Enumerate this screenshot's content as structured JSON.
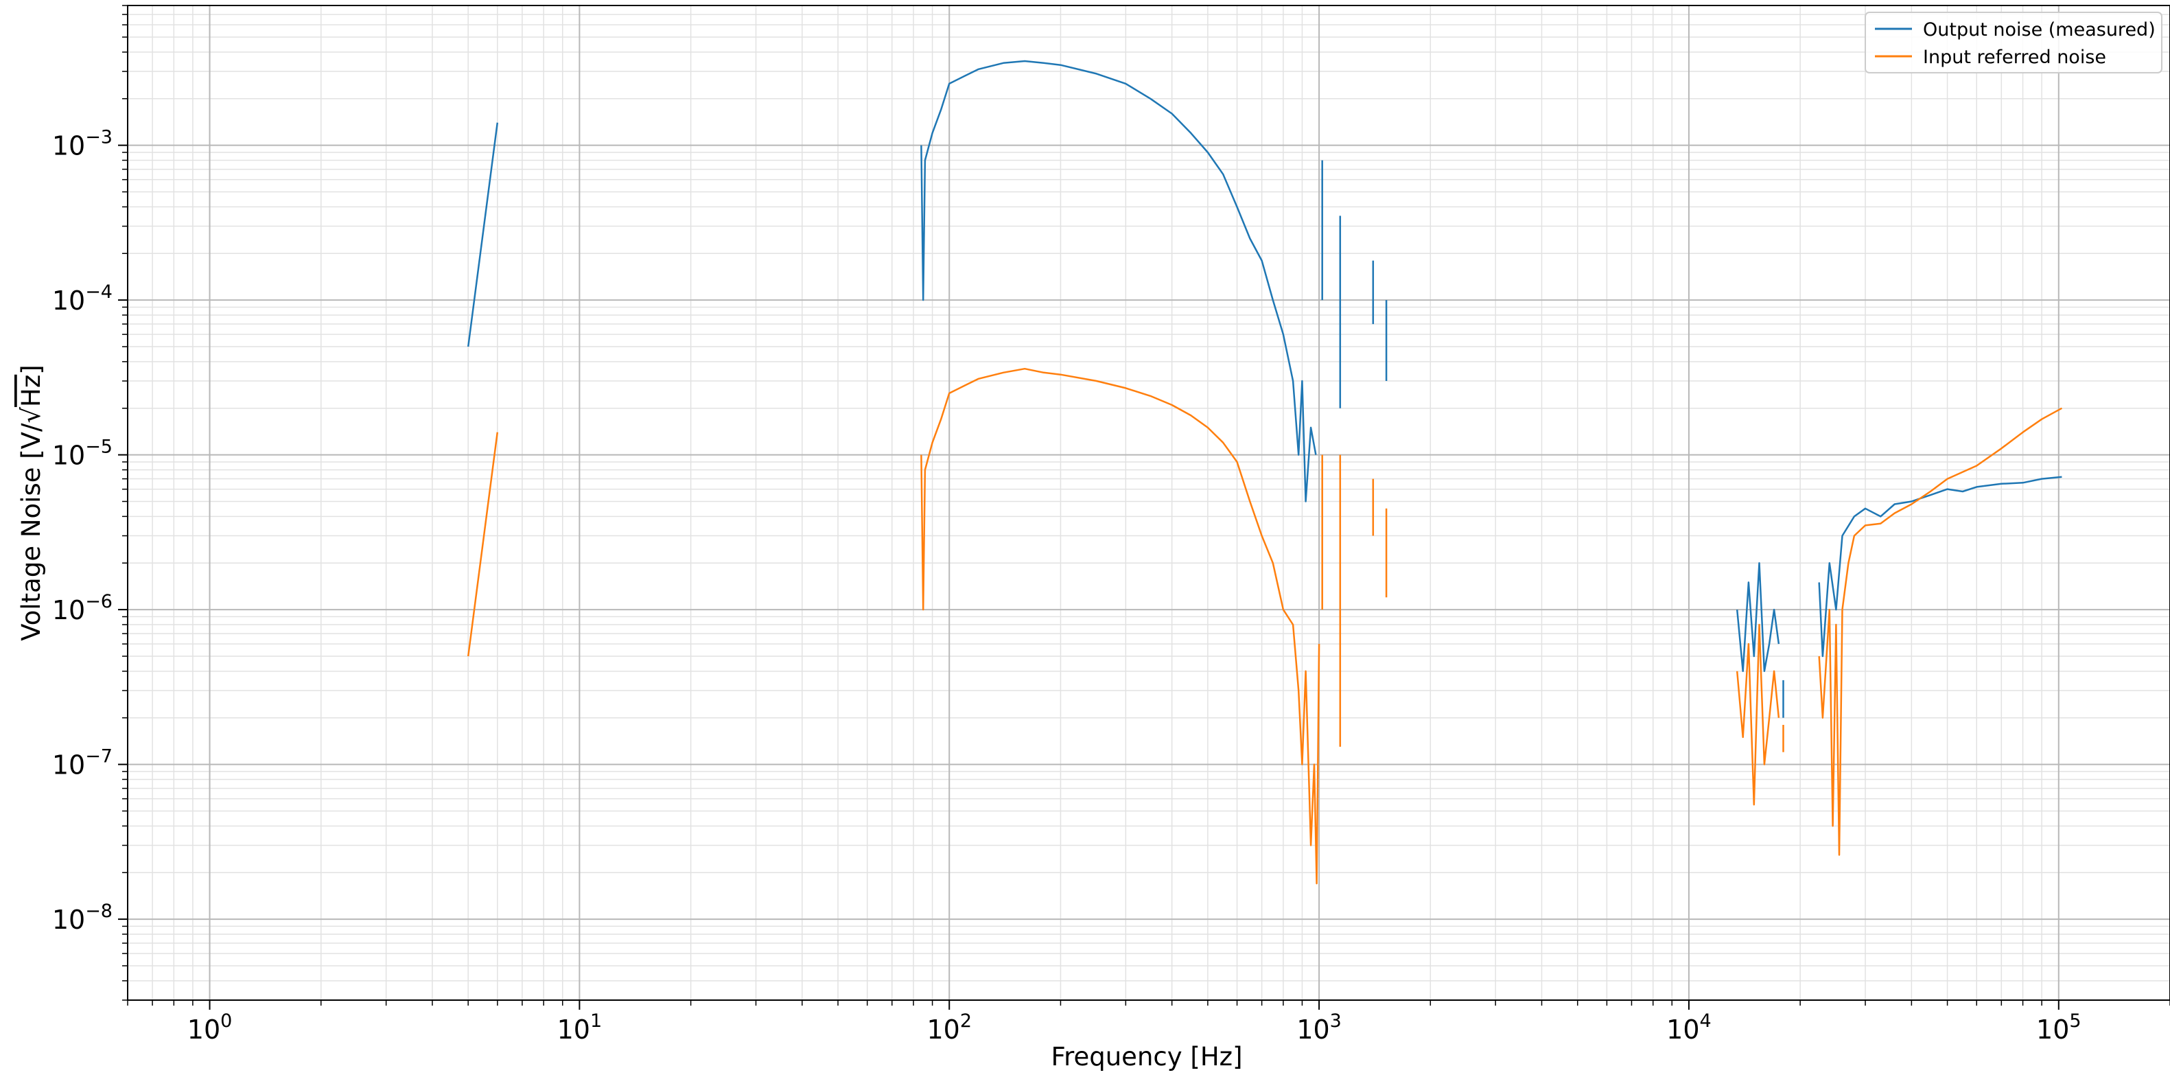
{
  "chart_data": {
    "type": "line",
    "title": "",
    "xlabel": "Frequency [Hz]",
    "ylabel": "Voltage Noise [V/√Hz]",
    "ylabel_parts": {
      "prefix": "Voltage Noise [V/√",
      "over": "Hz",
      "suffix": "]"
    },
    "x_scale": "log",
    "y_scale": "log",
    "xlim": [
      0.6,
      200000
    ],
    "ylim": [
      3e-09,
      0.008
    ],
    "x_ticks": [
      {
        "value": 1,
        "base": "10",
        "exp": "0"
      },
      {
        "value": 10,
        "base": "10",
        "exp": "1"
      },
      {
        "value": 100,
        "base": "10",
        "exp": "2"
      },
      {
        "value": 1000,
        "base": "10",
        "exp": "3"
      },
      {
        "value": 10000,
        "base": "10",
        "exp": "4"
      },
      {
        "value": 100000,
        "base": "10",
        "exp": "5"
      }
    ],
    "y_ticks": [
      {
        "value": 1e-08,
        "base": "10",
        "exp": "−8"
      },
      {
        "value": 1e-07,
        "base": "10",
        "exp": "−7"
      },
      {
        "value": 1e-06,
        "base": "10",
        "exp": "−6"
      },
      {
        "value": 1e-05,
        "base": "10",
        "exp": "−5"
      },
      {
        "value": 0.0001,
        "base": "10",
        "exp": "−4"
      },
      {
        "value": 0.001,
        "base": "10",
        "exp": "−3"
      }
    ],
    "grid": true,
    "legend_position": "top-right",
    "series": [
      {
        "name": "Output noise (measured)",
        "color": "#1f77b4",
        "segments": [
          [
            [
              5,
              5e-05
            ],
            [
              6,
              0.0014
            ]
          ],
          [
            [
              84,
              0.001
            ],
            [
              85,
              0.0001
            ],
            [
              86,
              0.0008
            ],
            [
              90,
              0.0012
            ],
            [
              95,
              0.0017
            ],
            [
              100,
              0.0025
            ],
            [
              110,
              0.0028
            ],
            [
              120,
              0.0031
            ],
            [
              140,
              0.0034
            ],
            [
              160,
              0.0035
            ],
            [
              180,
              0.0034
            ],
            [
              200,
              0.0033
            ],
            [
              250,
              0.0029
            ],
            [
              300,
              0.0025
            ],
            [
              350,
              0.002
            ],
            [
              400,
              0.0016
            ],
            [
              450,
              0.0012
            ],
            [
              500,
              0.0009
            ],
            [
              550,
              0.00065
            ],
            [
              600,
              0.0004
            ],
            [
              650,
              0.00025
            ],
            [
              700,
              0.00018
            ],
            [
              750,
              0.0001
            ],
            [
              800,
              6e-05
            ],
            [
              850,
              3e-05
            ],
            [
              880,
              1e-05
            ],
            [
              900,
              3e-05
            ],
            [
              920,
              5e-06
            ],
            [
              950,
              1.5e-05
            ],
            [
              980,
              1e-05
            ]
          ],
          [
            [
              1020,
              0.0008
            ],
            [
              1020,
              0.0001
            ]
          ],
          [
            [
              1140,
              0.00035
            ],
            [
              1140,
              2e-05
            ]
          ],
          [
            [
              1400,
              0.00018
            ],
            [
              1400,
              7e-05
            ]
          ],
          [
            [
              1520,
              0.0001
            ],
            [
              1520,
              3e-05
            ]
          ],
          [
            [
              13500,
              1e-06
            ],
            [
              14000,
              4e-07
            ],
            [
              14500,
              1.5e-06
            ],
            [
              15000,
              5e-07
            ],
            [
              15500,
              2e-06
            ],
            [
              16000,
              4e-07
            ],
            [
              16500,
              6e-07
            ],
            [
              17000,
              1e-06
            ],
            [
              17500,
              6e-07
            ]
          ],
          [
            [
              18000,
              3.5e-07
            ],
            [
              18000,
              2e-07
            ]
          ],
          [
            [
              22500,
              1.5e-06
            ],
            [
              23000,
              5e-07
            ],
            [
              24000,
              2e-06
            ],
            [
              25000,
              1e-06
            ],
            [
              26000,
              3e-06
            ],
            [
              28000,
              4e-06
            ],
            [
              30000,
              4.5e-06
            ],
            [
              33000,
              4e-06
            ],
            [
              36000,
              4.8e-06
            ],
            [
              40000,
              5e-06
            ],
            [
              45000,
              5.5e-06
            ],
            [
              50000,
              6e-06
            ],
            [
              55000,
              5.8e-06
            ],
            [
              60000,
              6.2e-06
            ],
            [
              70000,
              6.5e-06
            ],
            [
              80000,
              6.6e-06
            ],
            [
              90000,
              7e-06
            ],
            [
              102000,
              7.2e-06
            ]
          ]
        ]
      },
      {
        "name": "Input referred noise",
        "color": "#ff7f0e",
        "segments": [
          [
            [
              5,
              5e-07
            ],
            [
              6,
              1.4e-05
            ]
          ],
          [
            [
              84,
              1e-05
            ],
            [
              85,
              1e-06
            ],
            [
              86,
              8e-06
            ],
            [
              90,
              1.2e-05
            ],
            [
              95,
              1.7e-05
            ],
            [
              100,
              2.5e-05
            ],
            [
              110,
              2.8e-05
            ],
            [
              120,
              3.1e-05
            ],
            [
              140,
              3.4e-05
            ],
            [
              160,
              3.6e-05
            ],
            [
              180,
              3.4e-05
            ],
            [
              200,
              3.3e-05
            ],
            [
              250,
              3e-05
            ],
            [
              300,
              2.7e-05
            ],
            [
              350,
              2.4e-05
            ],
            [
              400,
              2.1e-05
            ],
            [
              450,
              1.8e-05
            ],
            [
              500,
              1.5e-05
            ],
            [
              550,
              1.2e-05
            ],
            [
              600,
              9e-06
            ],
            [
              650,
              5e-06
            ],
            [
              700,
              3e-06
            ],
            [
              750,
              2e-06
            ],
            [
              800,
              1e-06
            ],
            [
              850,
              8e-07
            ],
            [
              880,
              3e-07
            ],
            [
              900,
              1e-07
            ],
            [
              920,
              4e-07
            ],
            [
              950,
              3e-08
            ],
            [
              970,
              1e-07
            ],
            [
              985,
              1.7e-08
            ],
            [
              1000,
              6e-07
            ]
          ],
          [
            [
              1020,
              1e-05
            ],
            [
              1020,
              1e-06
            ]
          ],
          [
            [
              1140,
              1e-05
            ],
            [
              1140,
              1.3e-07
            ]
          ],
          [
            [
              1400,
              7e-06
            ],
            [
              1400,
              3e-06
            ]
          ],
          [
            [
              1520,
              4.5e-06
            ],
            [
              1520,
              1.2e-06
            ]
          ],
          [
            [
              13500,
              4e-07
            ],
            [
              14000,
              1.5e-07
            ],
            [
              14500,
              6e-07
            ],
            [
              15000,
              5.5e-08
            ],
            [
              15500,
              8e-07
            ],
            [
              16000,
              1e-07
            ],
            [
              16500,
              2e-07
            ],
            [
              17000,
              4e-07
            ],
            [
              17500,
              2e-07
            ]
          ],
          [
            [
              18000,
              1.8e-07
            ],
            [
              18000,
              1.2e-07
            ]
          ],
          [
            [
              22500,
              5e-07
            ],
            [
              23000,
              2e-07
            ],
            [
              24000,
              1e-06
            ],
            [
              24500,
              4e-08
            ],
            [
              25000,
              8e-07
            ],
            [
              25500,
              2.6e-08
            ],
            [
              26000,
              1e-06
            ],
            [
              27000,
              2e-06
            ],
            [
              28000,
              3e-06
            ],
            [
              30000,
              3.5e-06
            ],
            [
              33000,
              3.6e-06
            ],
            [
              36000,
              4.2e-06
            ],
            [
              40000,
              4.8e-06
            ],
            [
              45000,
              5.8e-06
            ],
            [
              50000,
              7e-06
            ],
            [
              60000,
              8.5e-06
            ],
            [
              70000,
              1.1e-05
            ],
            [
              80000,
              1.4e-05
            ],
            [
              90000,
              1.7e-05
            ],
            [
              102000,
              2e-05
            ]
          ]
        ]
      }
    ]
  }
}
